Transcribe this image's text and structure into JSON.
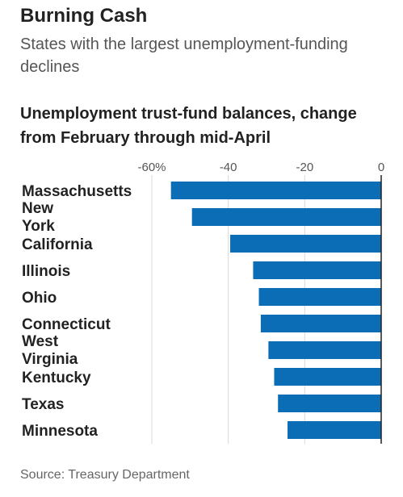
{
  "header": {
    "title": "Burning Cash",
    "subtitle": "States with the largest unemployment-funding declines"
  },
  "chart_data": {
    "type": "bar",
    "orientation": "horizontal",
    "title": "Unemployment trust-fund balances, change from February through mid-April",
    "categories": [
      "Massachusetts",
      "New York",
      "California",
      "Illinois",
      "Ohio",
      "Connecticut",
      "West Virginia",
      "Kentucky",
      "Texas",
      "Minnesota"
    ],
    "values": [
      -55,
      -49.5,
      -39.5,
      -33.5,
      -32,
      -31.5,
      -29.5,
      -28,
      -27,
      -24.5
    ],
    "xlim": [
      -60,
      0
    ],
    "xticks": [
      -60,
      -40,
      -20,
      0
    ],
    "xtick_labels": [
      "-60%",
      "-40",
      "-20",
      "0"
    ],
    "grid": true,
    "bar_color": "#0a6db5"
  },
  "footer": {
    "source": "Source: Treasury Department"
  }
}
